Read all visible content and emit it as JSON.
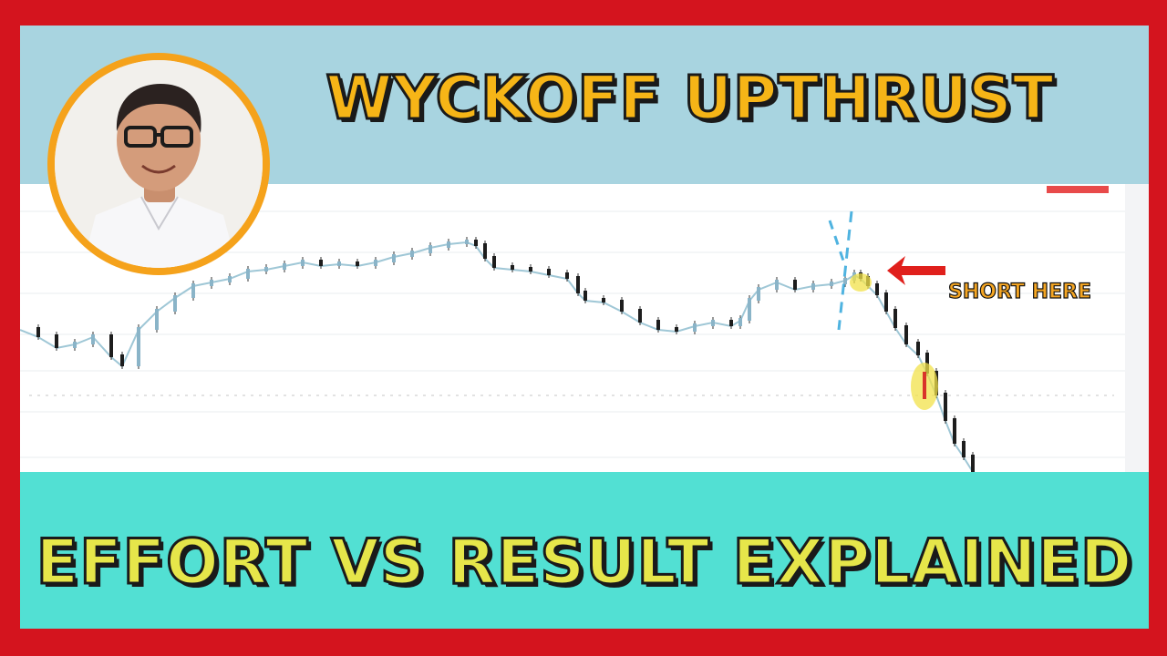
{
  "title_top": "WYCKOFF UPTHRUST",
  "title_bottom": "EFFORT VS RESULT EXPLAINED",
  "annotation": "SHORT HERE",
  "colors": {
    "frame": "#d4141e",
    "top_band": "#a8d4e0",
    "bottom_band": "#52e0d3",
    "title_top_fill": "#f6b517",
    "title_bottom_fill": "#e6e64a",
    "annotation_fill": "#f5a623",
    "arrow": "#e0201c",
    "highlight": "#f2e24a",
    "avatar_ring": "#f5a21b"
  },
  "icons": {
    "presenter": "presenter-photo",
    "arrow": "arrow-left-icon"
  }
}
